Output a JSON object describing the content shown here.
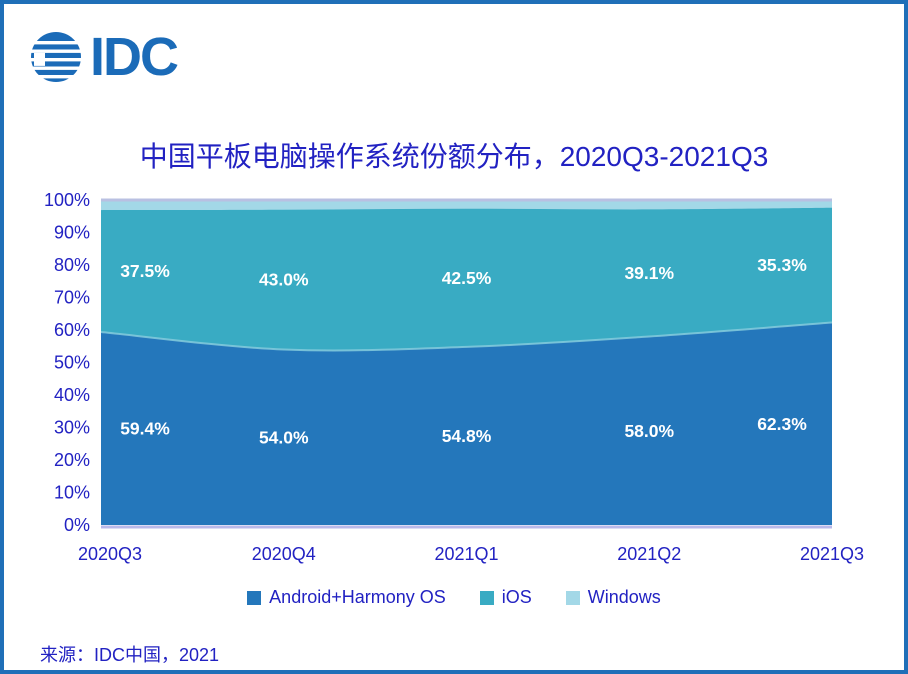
{
  "page": {
    "border_color": "#1f6fb8",
    "background": "#ffffff"
  },
  "logo": {
    "text": "IDC",
    "color": "#1b6bb8"
  },
  "title": {
    "text": "中国平板电脑操作系统份额分布，2020Q3-2021Q3",
    "color": "#2222c2"
  },
  "source": {
    "text": "来源：IDC中国，2021"
  },
  "chart_data": {
    "type": "area",
    "stacked": true,
    "title": "中国平板电脑操作系统份额分布，2020Q3-2021Q3",
    "categories": [
      "2020Q3",
      "2020Q4",
      "2021Q1",
      "2021Q2",
      "2021Q3"
    ],
    "series": [
      {
        "name": "Android+Harmony OS",
        "color": "#2477bb",
        "values": [
          59.4,
          54.0,
          54.8,
          58.0,
          62.3
        ],
        "labels": [
          "59.4%",
          "54.0%",
          "54.8%",
          "58.0%",
          "62.3%"
        ],
        "show_labels": true
      },
      {
        "name": "iOS",
        "color": "#39abc3",
        "values": [
          37.5,
          43.0,
          42.5,
          39.1,
          35.3
        ],
        "labels": [
          "37.5%",
          "43.0%",
          "42.5%",
          "39.1%",
          "35.3%"
        ],
        "show_labels": true
      },
      {
        "name": "Windows",
        "color": "#a3d8e7",
        "values": [
          3.1,
          3.0,
          2.7,
          2.9,
          2.4
        ],
        "labels": [],
        "show_labels": false
      }
    ],
    "xlabel": "",
    "ylabel": "",
    "ylim": [
      0,
      100
    ],
    "ytick_labels": [
      "0%",
      "10%",
      "20%",
      "30%",
      "40%",
      "50%",
      "60%",
      "70%",
      "80%",
      "90%",
      "100%"
    ],
    "grid": false,
    "legend_position": "bottom",
    "tick_color": "#2222c2",
    "data_label_color": "#ffffff",
    "top_axis_line_color": "#b9c0e2",
    "bottom_axis_line_color": "#b9b9ea",
    "android_top_edge_color": "#85cbdd"
  }
}
